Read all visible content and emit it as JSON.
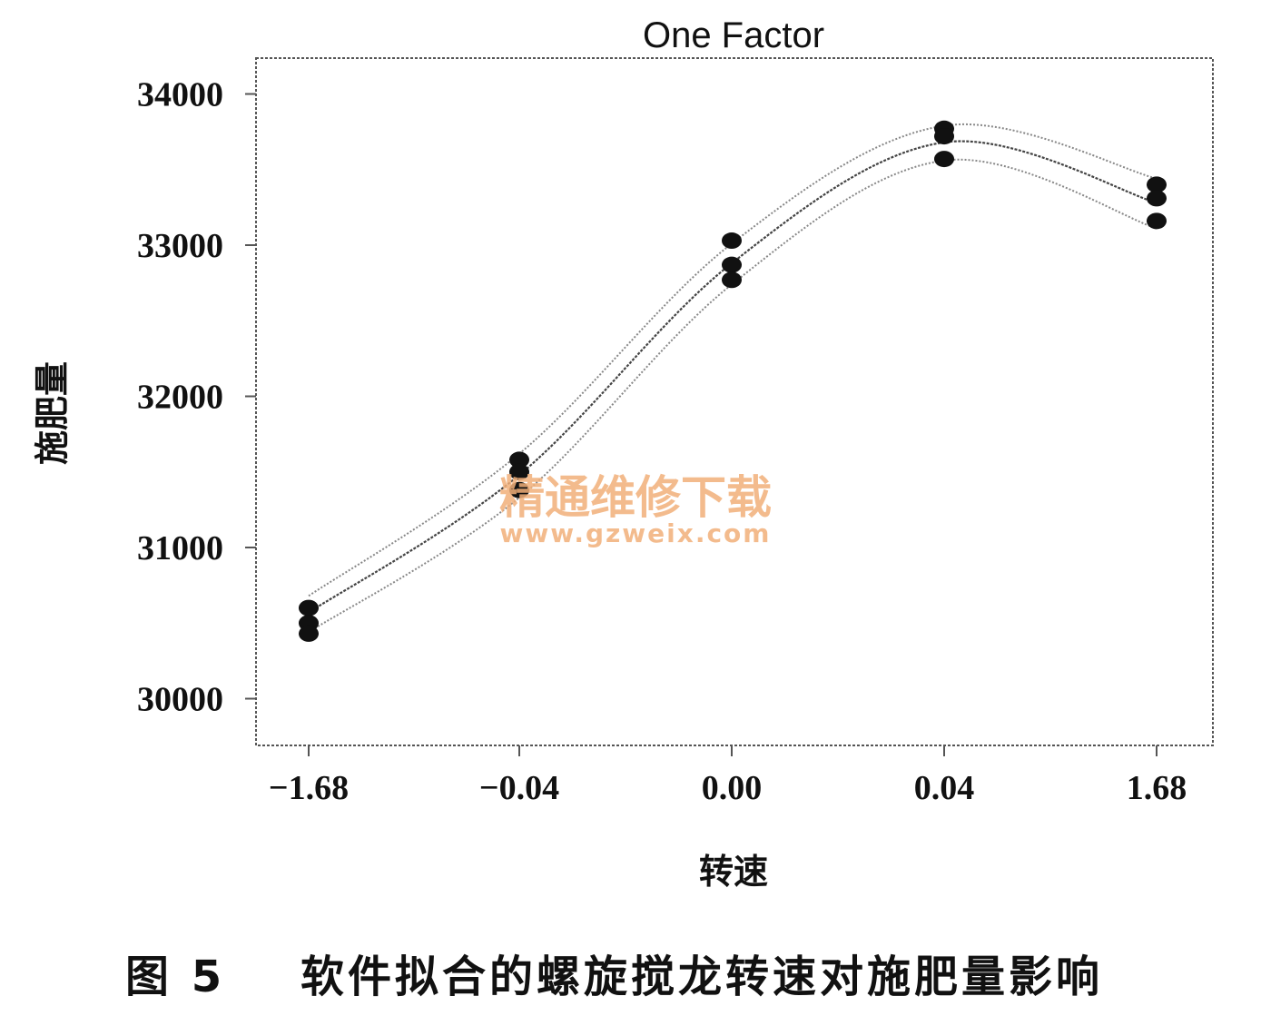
{
  "chart_data": {
    "type": "line",
    "title": "One Factor",
    "xlabel": "转速",
    "ylabel": "施肥量",
    "categories": [
      "-1.68",
      "-0.04",
      "0.00",
      "0.04",
      "1.68"
    ],
    "ylim": [
      29800,
      34200
    ],
    "yticks": [
      30000,
      31000,
      32000,
      33000,
      34000
    ],
    "grid": false,
    "legend": "none",
    "series": [
      {
        "values": [
          30570,
          31480,
          32880,
          33680,
          33280
        ]
      },
      {
        "values": [
          30680,
          31620,
          33010,
          33790,
          33440
        ]
      },
      {
        "values": [
          30440,
          31330,
          32740,
          33560,
          33110
        ]
      }
    ],
    "points": [
      {
        "x": "-1.68",
        "y": 30600
      },
      {
        "x": "-1.68",
        "y": 30500
      },
      {
        "x": "-1.68",
        "y": 30430
      },
      {
        "x": "-0.04",
        "y": 31580
      },
      {
        "x": "-0.04",
        "y": 31500
      },
      {
        "x": "-0.04",
        "y": 31380
      },
      {
        "x": "0.00",
        "y": 33030
      },
      {
        "x": "0.00",
        "y": 32870
      },
      {
        "x": "0.00",
        "y": 32770
      },
      {
        "x": "0.04",
        "y": 33770
      },
      {
        "x": "0.04",
        "y": 33720
      },
      {
        "x": "0.04",
        "y": 33570
      },
      {
        "x": "1.68",
        "y": 33400
      },
      {
        "x": "1.68",
        "y": 33310
      },
      {
        "x": "1.68",
        "y": 33160
      }
    ]
  },
  "caption": "图 5    软件拟合的螺旋搅龙转速对施肥量影响",
  "watermark": {
    "text": "精通维修下载",
    "url": "www.gzweix.com"
  },
  "colors": {
    "points": "#111111",
    "fit_line": "#444444",
    "band_line": "#888888",
    "frame": "#555555",
    "watermark": "#f2b07a"
  }
}
